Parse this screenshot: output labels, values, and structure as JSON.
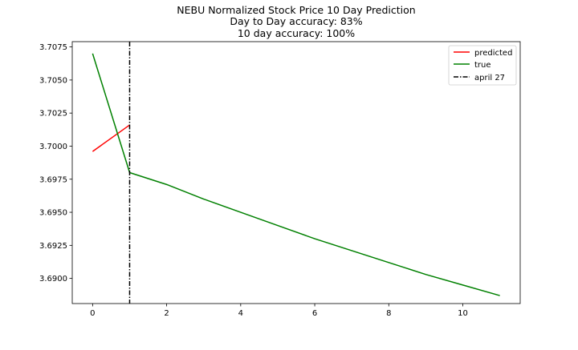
{
  "chart_data": {
    "type": "line",
    "title_lines": [
      "NEBU Normalized Stock Price 10 Day Prediction",
      "Day to Day accuracy: 83%",
      "10 day accuracy: 100%"
    ],
    "xlabel": "",
    "ylabel": "",
    "xlim": [
      -0.55,
      11.55
    ],
    "ylim": [
      3.6881,
      3.7079
    ],
    "x_ticks": [
      0,
      2,
      4,
      6,
      8,
      10
    ],
    "x_tick_labels": [
      "0",
      "2",
      "4",
      "6",
      "8",
      "10"
    ],
    "y_ticks": [
      3.69,
      3.6925,
      3.695,
      3.6975,
      3.7,
      3.7025,
      3.705,
      3.7075
    ],
    "y_tick_labels": [
      "3.6900",
      "3.6925",
      "3.6950",
      "3.6975",
      "3.7000",
      "3.7025",
      "3.7050",
      "3.7075"
    ],
    "grid": false,
    "legend_position": "top-right",
    "series": [
      {
        "name": "predicted",
        "color": "#ff0000",
        "x": [
          0,
          1
        ],
        "y": [
          3.6996,
          3.7016
        ]
      },
      {
        "name": "true",
        "color": "#008000",
        "x": [
          0,
          1,
          2,
          3,
          4,
          5,
          6,
          7,
          8,
          9,
          10,
          11
        ],
        "y": [
          3.707,
          3.698,
          3.6971,
          3.696,
          3.695,
          3.694,
          3.693,
          3.6921,
          3.6912,
          3.6903,
          3.6895,
          3.6887
        ]
      }
    ],
    "vertical_line": {
      "name": "april 27",
      "x": 1,
      "color": "#000000",
      "style": "dash-dot"
    }
  }
}
